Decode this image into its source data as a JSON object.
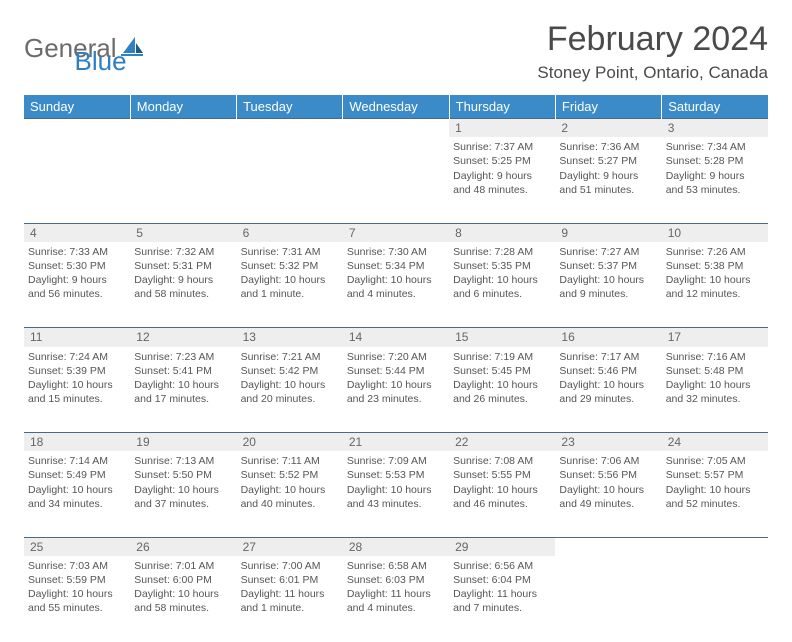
{
  "logo": {
    "gray": "General",
    "blue": "Blue"
  },
  "title": "February 2024",
  "location": "Stoney Point, Ontario, Canada",
  "header_bg": "#3b8bc9",
  "days": [
    "Sunday",
    "Monday",
    "Tuesday",
    "Wednesday",
    "Thursday",
    "Friday",
    "Saturday"
  ],
  "weeks": [
    {
      "nums": [
        "",
        "",
        "",
        "",
        "1",
        "2",
        "3"
      ],
      "cells": [
        null,
        null,
        null,
        null,
        {
          "sr": "7:37 AM",
          "ss": "5:25 PM",
          "dl": "9 hours and 48 minutes."
        },
        {
          "sr": "7:36 AM",
          "ss": "5:27 PM",
          "dl": "9 hours and 51 minutes."
        },
        {
          "sr": "7:34 AM",
          "ss": "5:28 PM",
          "dl": "9 hours and 53 minutes."
        }
      ]
    },
    {
      "nums": [
        "4",
        "5",
        "6",
        "7",
        "8",
        "9",
        "10"
      ],
      "cells": [
        {
          "sr": "7:33 AM",
          "ss": "5:30 PM",
          "dl": "9 hours and 56 minutes."
        },
        {
          "sr": "7:32 AM",
          "ss": "5:31 PM",
          "dl": "9 hours and 58 minutes."
        },
        {
          "sr": "7:31 AM",
          "ss": "5:32 PM",
          "dl": "10 hours and 1 minute."
        },
        {
          "sr": "7:30 AM",
          "ss": "5:34 PM",
          "dl": "10 hours and 4 minutes."
        },
        {
          "sr": "7:28 AM",
          "ss": "5:35 PM",
          "dl": "10 hours and 6 minutes."
        },
        {
          "sr": "7:27 AM",
          "ss": "5:37 PM",
          "dl": "10 hours and 9 minutes."
        },
        {
          "sr": "7:26 AM",
          "ss": "5:38 PM",
          "dl": "10 hours and 12 minutes."
        }
      ]
    },
    {
      "nums": [
        "11",
        "12",
        "13",
        "14",
        "15",
        "16",
        "17"
      ],
      "cells": [
        {
          "sr": "7:24 AM",
          "ss": "5:39 PM",
          "dl": "10 hours and 15 minutes."
        },
        {
          "sr": "7:23 AM",
          "ss": "5:41 PM",
          "dl": "10 hours and 17 minutes."
        },
        {
          "sr": "7:21 AM",
          "ss": "5:42 PM",
          "dl": "10 hours and 20 minutes."
        },
        {
          "sr": "7:20 AM",
          "ss": "5:44 PM",
          "dl": "10 hours and 23 minutes."
        },
        {
          "sr": "7:19 AM",
          "ss": "5:45 PM",
          "dl": "10 hours and 26 minutes."
        },
        {
          "sr": "7:17 AM",
          "ss": "5:46 PM",
          "dl": "10 hours and 29 minutes."
        },
        {
          "sr": "7:16 AM",
          "ss": "5:48 PM",
          "dl": "10 hours and 32 minutes."
        }
      ]
    },
    {
      "nums": [
        "18",
        "19",
        "20",
        "21",
        "22",
        "23",
        "24"
      ],
      "cells": [
        {
          "sr": "7:14 AM",
          "ss": "5:49 PM",
          "dl": "10 hours and 34 minutes."
        },
        {
          "sr": "7:13 AM",
          "ss": "5:50 PM",
          "dl": "10 hours and 37 minutes."
        },
        {
          "sr": "7:11 AM",
          "ss": "5:52 PM",
          "dl": "10 hours and 40 minutes."
        },
        {
          "sr": "7:09 AM",
          "ss": "5:53 PM",
          "dl": "10 hours and 43 minutes."
        },
        {
          "sr": "7:08 AM",
          "ss": "5:55 PM",
          "dl": "10 hours and 46 minutes."
        },
        {
          "sr": "7:06 AM",
          "ss": "5:56 PM",
          "dl": "10 hours and 49 minutes."
        },
        {
          "sr": "7:05 AM",
          "ss": "5:57 PM",
          "dl": "10 hours and 52 minutes."
        }
      ]
    },
    {
      "nums": [
        "25",
        "26",
        "27",
        "28",
        "29",
        "",
        ""
      ],
      "cells": [
        {
          "sr": "7:03 AM",
          "ss": "5:59 PM",
          "dl": "10 hours and 55 minutes."
        },
        {
          "sr": "7:01 AM",
          "ss": "6:00 PM",
          "dl": "10 hours and 58 minutes."
        },
        {
          "sr": "7:00 AM",
          "ss": "6:01 PM",
          "dl": "11 hours and 1 minute."
        },
        {
          "sr": "6:58 AM",
          "ss": "6:03 PM",
          "dl": "11 hours and 4 minutes."
        },
        {
          "sr": "6:56 AM",
          "ss": "6:04 PM",
          "dl": "11 hours and 7 minutes."
        },
        null,
        null
      ]
    }
  ],
  "labels": {
    "sunrise": "Sunrise: ",
    "sunset": "Sunset: ",
    "daylight": "Daylight: "
  }
}
